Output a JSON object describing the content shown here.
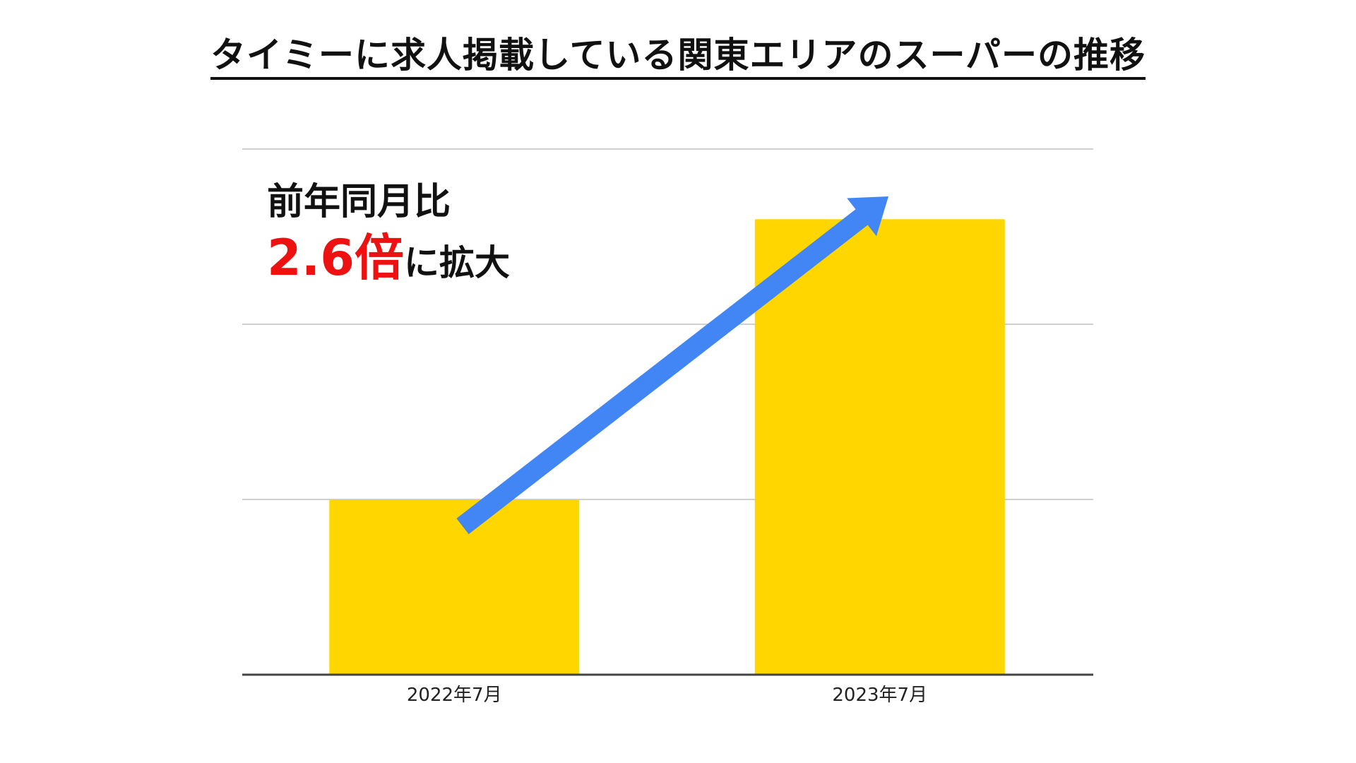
{
  "title": "タイミーに求人掲載している関東エリアのスーパーの推移",
  "annotation": {
    "line1": "前年同月比",
    "highlight": "2.6倍",
    "suffix": "に拡大"
  },
  "chart_data": {
    "type": "bar",
    "title": "タイミーに求人掲載している関東エリアのスーパーの推移",
    "categories": [
      "2022年7月",
      "2023年7月"
    ],
    "values": [
      1.0,
      2.6
    ],
    "ylim": [
      0,
      3.0
    ],
    "grid": true,
    "gridlines": [
      1.0,
      2.0,
      3.0
    ],
    "bar_color": "#FFD600",
    "grid_color": "#d0d0d0",
    "axis_color": "#444444",
    "arrow_color": "#4285F4",
    "xlabel": "",
    "ylabel": ""
  }
}
